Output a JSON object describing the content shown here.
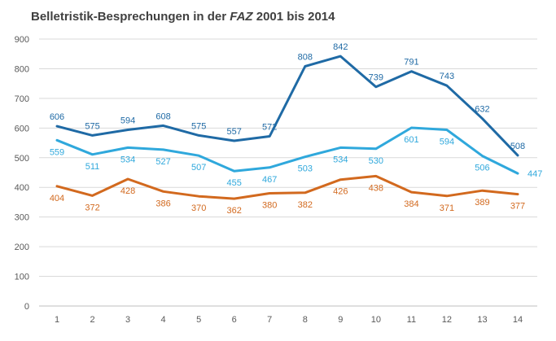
{
  "chart_data": {
    "type": "line",
    "title_pre": "Belletristik-Besprechungen in der ",
    "title_em": "FAZ",
    "title_post": " 2001 bis 2014",
    "xlabel": "",
    "ylabel": "",
    "x": [
      "1",
      "2",
      "3",
      "4",
      "5",
      "6",
      "7",
      "8",
      "9",
      "10",
      "11",
      "12",
      "13",
      "14"
    ],
    "ylim": [
      0,
      900
    ],
    "yticks": [
      0,
      100,
      200,
      300,
      400,
      500,
      600,
      700,
      800,
      900
    ],
    "grid": true,
    "legend": "none",
    "series": [
      {
        "values": [
          606,
          575,
          594,
          608,
          575,
          557,
          572,
          808,
          842,
          739,
          791,
          743,
          632,
          508
        ],
        "color": "#1f6aa5",
        "label_pos": "above"
      },
      {
        "values": [
          559,
          511,
          534,
          527,
          507,
          455,
          467,
          503,
          534,
          530,
          601,
          594,
          506,
          447
        ],
        "color": "#2fa8dc",
        "label_pos": "below"
      },
      {
        "values": [
          404,
          372,
          428,
          386,
          370,
          362,
          380,
          382,
          426,
          438,
          384,
          371,
          389,
          377
        ],
        "color": "#d2691e",
        "label_pos": "below"
      }
    ]
  }
}
